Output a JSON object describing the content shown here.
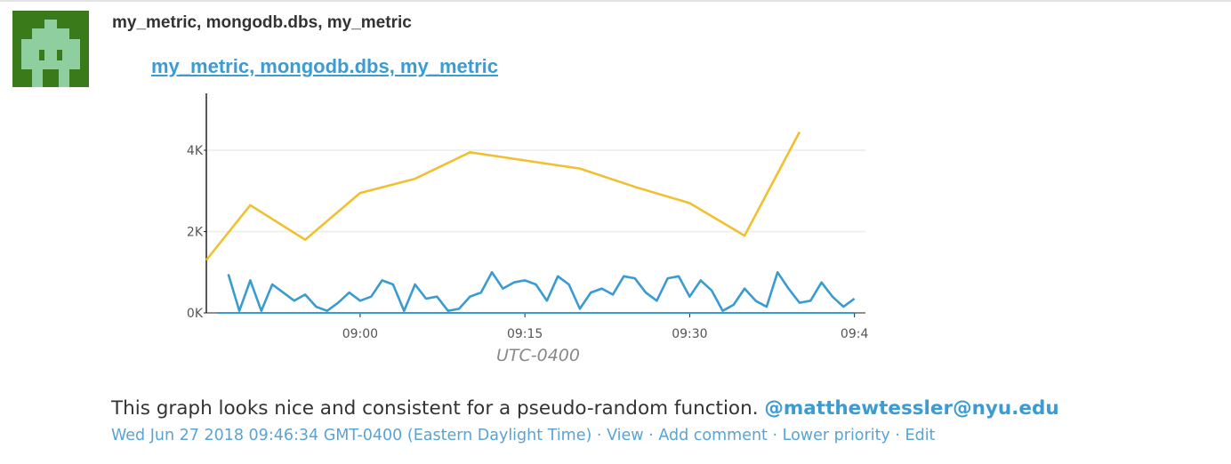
{
  "post": {
    "author_name": "my_metric, mongodb.dbs, my_metric",
    "graph_title": "my_metric, mongodb.dbs, my_metric",
    "comment_text": "This graph looks nice and consistent for a pseudo-random function.",
    "mention": "@matthewtessler@nyu.edu",
    "timestamp": "Wed Jun 27 2018 09:46:34 GMT-0400 (Eastern Daylight Time)",
    "actions": [
      "View",
      "Add comment",
      "Lower priority",
      "Edit"
    ],
    "separator": "·"
  },
  "colors": {
    "link": "#3b9bd3",
    "series_a": "#f0c030",
    "series_b": "#3a9bd0",
    "avatar_bg": "#3b7a1a",
    "avatar_fg": "#8fcf9f"
  },
  "chart_data": {
    "type": "line",
    "title": "my_metric, mongodb.dbs, my_metric",
    "xlabel": "UTC-0400",
    "ylabel": "",
    "x_ticks": [
      "09:00",
      "09:15",
      "09:30",
      "09:4"
    ],
    "y_ticks": [
      "0K",
      "2K",
      "4K"
    ],
    "ylim": [
      0,
      5400
    ],
    "grid": true,
    "series": [
      {
        "color": "#f0c030",
        "x": [
          "08:46",
          "08:50",
          "08:55",
          "09:00",
          "09:05",
          "09:10",
          "09:15",
          "09:20",
          "09:25",
          "09:30",
          "09:35",
          "09:40"
        ],
        "values": [
          1300,
          2650,
          1800,
          2950,
          3300,
          3950,
          3750,
          3550,
          3100,
          2700,
          1900,
          4450
        ]
      },
      {
        "color": "#3a9bd0",
        "x": [
          "08:48",
          "08:49",
          "08:50",
          "08:51",
          "08:52",
          "08:53",
          "08:54",
          "08:55",
          "08:56",
          "08:57",
          "08:58",
          "08:59",
          "09:00",
          "09:01",
          "09:02",
          "09:03",
          "09:04",
          "09:05",
          "09:06",
          "09:07",
          "09:08",
          "09:09",
          "09:10",
          "09:11",
          "09:12",
          "09:13",
          "09:14",
          "09:15",
          "09:16",
          "09:17",
          "09:18",
          "09:19",
          "09:20",
          "09:21",
          "09:22",
          "09:23",
          "09:24",
          "09:25",
          "09:26",
          "09:27",
          "09:28",
          "09:29",
          "09:30",
          "09:31",
          "09:32",
          "09:33",
          "09:34",
          "09:35",
          "09:36",
          "09:37",
          "09:38",
          "09:39",
          "09:40",
          "09:41",
          "09:42",
          "09:43",
          "09:44",
          "09:45"
        ],
        "values": [
          950,
          50,
          800,
          50,
          700,
          500,
          300,
          450,
          150,
          50,
          250,
          500,
          300,
          400,
          800,
          700,
          50,
          700,
          350,
          400,
          50,
          100,
          400,
          500,
          1000,
          600,
          750,
          800,
          700,
          300,
          900,
          700,
          100,
          500,
          600,
          450,
          900,
          850,
          500,
          300,
          850,
          900,
          400,
          800,
          550,
          50,
          200,
          600,
          300,
          150,
          1000,
          600,
          250,
          300,
          750,
          400,
          150,
          350
        ]
      }
    ]
  }
}
